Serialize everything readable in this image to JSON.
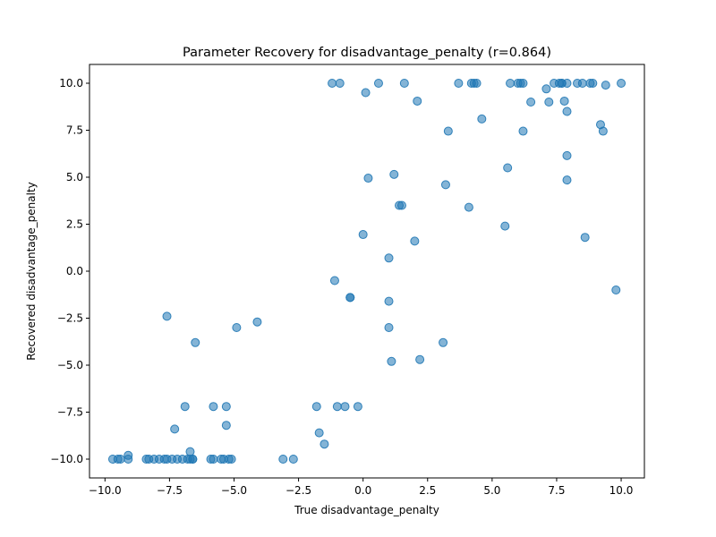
{
  "chart_data": {
    "type": "scatter",
    "title": "Parameter Recovery for disadvantage_penalty (r=0.864)",
    "xlabel": "True disadvantage_penalty",
    "ylabel": "Recovered disadvantage_penalty",
    "xlim": [
      -10.6,
      10.9
    ],
    "ylim": [
      -11.0,
      11.0
    ],
    "xticks": [
      -10.0,
      -7.5,
      -5.0,
      -2.5,
      0.0,
      2.5,
      5.0,
      7.5,
      10.0
    ],
    "xtick_labels": [
      "−10.0",
      "−7.5",
      "−5.0",
      "−2.5",
      "0.0",
      "2.5",
      "5.0",
      "7.5",
      "10.0"
    ],
    "yticks": [
      -10.0,
      -7.5,
      -5.0,
      -2.5,
      0.0,
      2.5,
      5.0,
      7.5,
      10.0
    ],
    "ytick_labels": [
      "−10.0",
      "−7.5",
      "−5.0",
      "−2.5",
      "0.0",
      "2.5",
      "5.0",
      "7.5",
      "10.0"
    ],
    "grid": false,
    "marker_color": "#1f77b4",
    "marker_alpha": 0.55,
    "points": [
      [
        -9.7,
        -10.0
      ],
      [
        -9.5,
        -10.0
      ],
      [
        -9.4,
        -10.0
      ],
      [
        -9.1,
        -10.0
      ],
      [
        -9.1,
        -9.8
      ],
      [
        -8.4,
        -10.0
      ],
      [
        -8.3,
        -10.0
      ],
      [
        -8.1,
        -10.0
      ],
      [
        -7.9,
        -10.0
      ],
      [
        -7.7,
        -10.0
      ],
      [
        -7.6,
        -10.0
      ],
      [
        -7.4,
        -10.0
      ],
      [
        -7.2,
        -10.0
      ],
      [
        -7.0,
        -10.0
      ],
      [
        -6.8,
        -10.0
      ],
      [
        -6.7,
        -10.0
      ],
      [
        -6.6,
        -10.0
      ],
      [
        -6.6,
        -10.0
      ],
      [
        -6.7,
        -9.6
      ],
      [
        -5.9,
        -10.0
      ],
      [
        -5.8,
        -10.0
      ],
      [
        -5.5,
        -10.0
      ],
      [
        -5.4,
        -10.0
      ],
      [
        -5.2,
        -10.0
      ],
      [
        -5.1,
        -10.0
      ],
      [
        -3.1,
        -10.0
      ],
      [
        -2.7,
        -10.0
      ],
      [
        -7.3,
        -8.4
      ],
      [
        -6.9,
        -7.2
      ],
      [
        -5.8,
        -7.2
      ],
      [
        -5.3,
        -7.2
      ],
      [
        -5.3,
        -8.2
      ],
      [
        -1.8,
        -7.2
      ],
      [
        -1.7,
        -8.6
      ],
      [
        -1.5,
        -9.2
      ],
      [
        -1.0,
        -7.2
      ],
      [
        -0.7,
        -7.2
      ],
      [
        -0.2,
        -7.2
      ],
      [
        -7.6,
        -2.4
      ],
      [
        -6.5,
        -3.8
      ],
      [
        -4.9,
        -3.0
      ],
      [
        -4.1,
        -2.7
      ],
      [
        -1.1,
        -0.5
      ],
      [
        -0.5,
        -1.4
      ],
      [
        -0.5,
        -1.4
      ],
      [
        0.0,
        1.95
      ],
      [
        0.2,
        4.95
      ],
      [
        1.2,
        5.15
      ],
      [
        1.4,
        3.5
      ],
      [
        1.5,
        3.5
      ],
      [
        2.0,
        1.6
      ],
      [
        1.0,
        0.7
      ],
      [
        1.0,
        -1.6
      ],
      [
        1.0,
        -3.0
      ],
      [
        1.1,
        -4.8
      ],
      [
        2.2,
        -4.7
      ],
      [
        3.1,
        -3.8
      ],
      [
        3.2,
        4.6
      ],
      [
        4.1,
        3.4
      ],
      [
        5.5,
        2.4
      ],
      [
        5.6,
        5.5
      ],
      [
        3.3,
        7.45
      ],
      [
        4.6,
        8.1
      ],
      [
        2.1,
        9.05
      ],
      [
        0.1,
        9.5
      ],
      [
        -1.2,
        10.0
      ],
      [
        -0.9,
        10.0
      ],
      [
        0.6,
        10.0
      ],
      [
        1.6,
        10.0
      ],
      [
        3.7,
        10.0
      ],
      [
        4.2,
        10.0
      ],
      [
        4.3,
        10.0
      ],
      [
        4.4,
        10.0
      ],
      [
        5.7,
        10.0
      ],
      [
        6.0,
        10.0
      ],
      [
        6.1,
        10.0
      ],
      [
        6.2,
        10.0
      ],
      [
        6.5,
        9.0
      ],
      [
        6.2,
        7.45
      ],
      [
        7.1,
        9.7
      ],
      [
        7.2,
        9.0
      ],
      [
        7.4,
        10.0
      ],
      [
        7.6,
        10.0
      ],
      [
        7.7,
        10.0
      ],
      [
        7.7,
        10.0
      ],
      [
        7.8,
        9.05
      ],
      [
        7.9,
        8.5
      ],
      [
        7.9,
        10.0
      ],
      [
        8.3,
        10.0
      ],
      [
        8.5,
        10.0
      ],
      [
        8.8,
        10.0
      ],
      [
        8.9,
        10.0
      ],
      [
        9.4,
        9.9
      ],
      [
        10.0,
        10.0
      ],
      [
        9.2,
        7.8
      ],
      [
        9.3,
        7.45
      ],
      [
        7.9,
        6.15
      ],
      [
        7.9,
        4.85
      ],
      [
        8.6,
        1.8
      ],
      [
        9.8,
        -1.0
      ]
    ]
  }
}
